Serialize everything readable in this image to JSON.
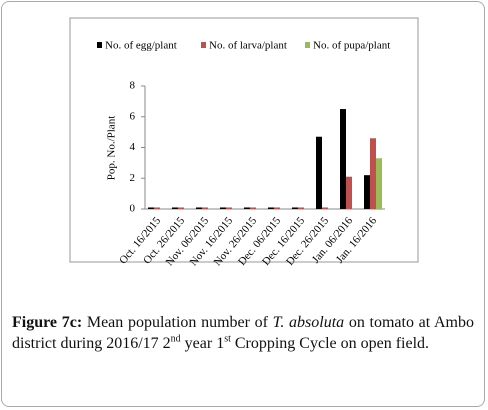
{
  "chart_data": {
    "type": "bar",
    "y_label": "Pop. No./Plant",
    "categories": [
      "Oct. 16/2015",
      "Oct. 26/2015",
      "Nov. 06/2015",
      "Nov. 16/2015",
      "Nov. 26/2015",
      "Dec. 06/2015",
      "Dec. 16/2015",
      "Dec. 26/2015",
      "Jan. 06/2016",
      "Jan. 16/2016"
    ],
    "series": [
      {
        "name": "No. of egg/plant",
        "color": "#000000",
        "values": [
          0.1,
          0.1,
          0.1,
          0.1,
          0.1,
          0.1,
          0.1,
          4.7,
          6.5,
          2.2
        ]
      },
      {
        "name": "No. of larva/plant",
        "color": "#c0504d",
        "values": [
          0.1,
          0.1,
          0.1,
          0.1,
          0.1,
          0.1,
          0.1,
          0.1,
          2.1,
          4.6
        ]
      },
      {
        "name": "No. of pupa/plant",
        "color": "#9bbb59",
        "values": [
          0,
          0,
          0,
          0,
          0,
          0,
          0,
          0,
          0,
          3.3
        ]
      }
    ],
    "ylim": [
      0,
      8
    ],
    "yticks": [
      0,
      2,
      4,
      6,
      8
    ],
    "grid": false
  },
  "caption": {
    "label": "Figure 7c:",
    "parts": [
      "Mean population number of ",
      "T. absoluta",
      " on tomato at Ambo district during 2016/17 2",
      "nd",
      " year 1",
      "st",
      " Cropping Cycle on open field."
    ]
  }
}
